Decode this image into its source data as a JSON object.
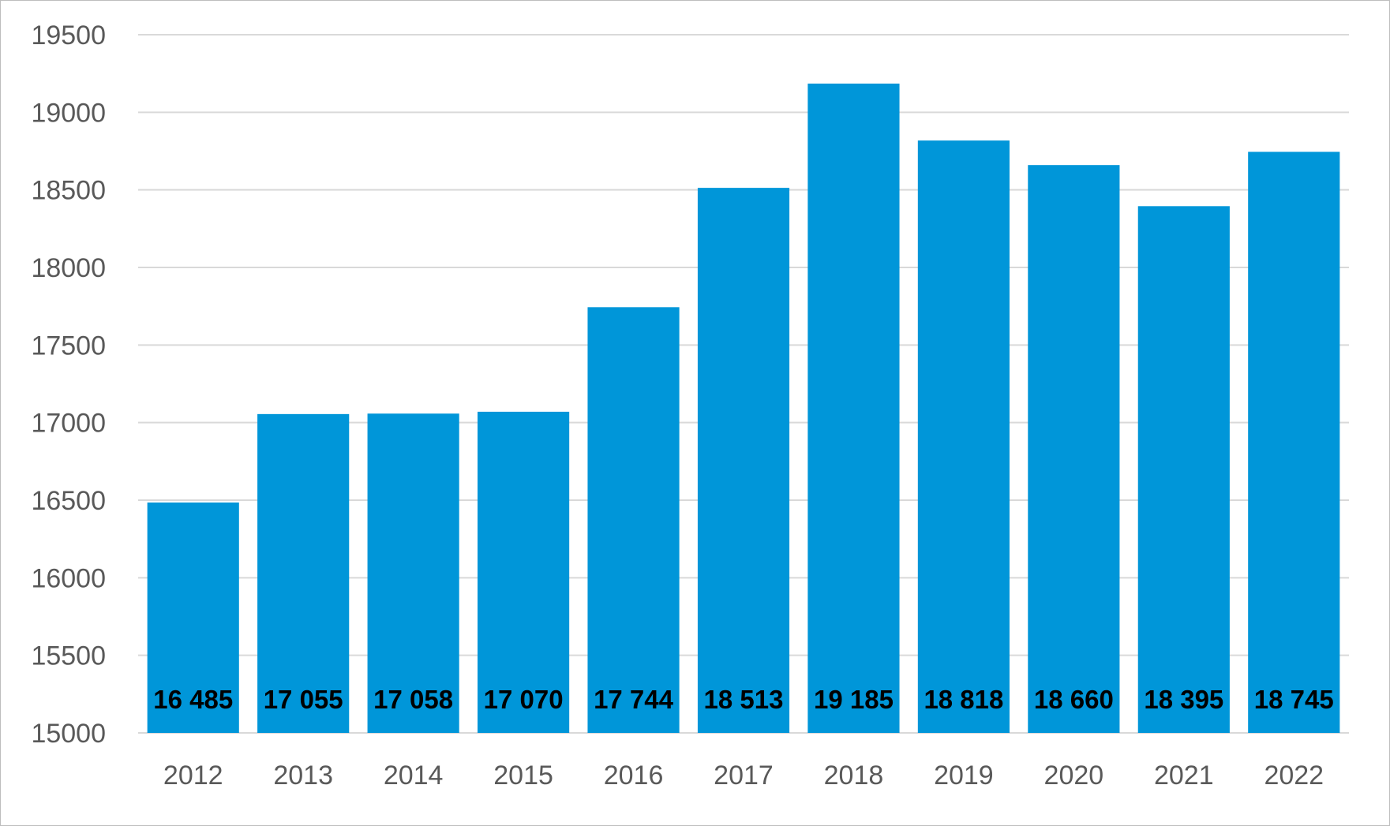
{
  "chart_data": {
    "type": "bar",
    "title": "",
    "xlabel": "",
    "ylabel": "",
    "categories": [
      "2012",
      "2013",
      "2014",
      "2015",
      "2016",
      "2017",
      "2018",
      "2019",
      "2020",
      "2021",
      "2022"
    ],
    "values": [
      16485,
      17055,
      17058,
      17070,
      17744,
      18513,
      19185,
      18818,
      18660,
      18395,
      18745
    ],
    "data_labels": [
      "16 485",
      "17 055",
      "17 058",
      "17 070",
      "17 744",
      "18 513",
      "19 185",
      "18 818",
      "18 660",
      "18 395",
      "18 745"
    ],
    "ylim": [
      15000,
      19500
    ],
    "yticks": [
      "15000",
      "15500",
      "16000",
      "16500",
      "17000",
      "17500",
      "18000",
      "18500",
      "19000",
      "19500"
    ],
    "grid": true,
    "legend": "none",
    "bar_color": "#0096d9",
    "grid_color": "#d9d9d9",
    "tick_color": "#595959"
  }
}
